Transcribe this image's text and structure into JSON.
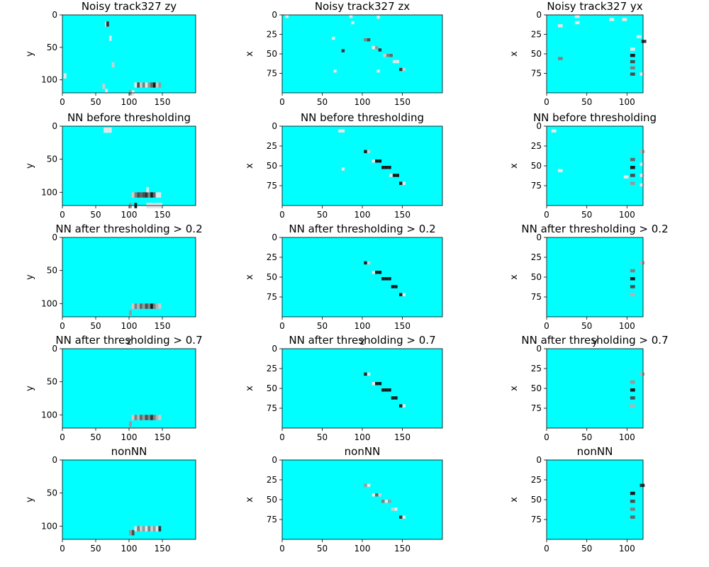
{
  "chart_data": {
    "type": "heatmap",
    "background_color": "#00ffff",
    "colormap": "gray (hits drawn on cyan background)",
    "columns": [
      {
        "view": "zy",
        "xlabel": "z",
        "ylabel": "y",
        "xlim": [
          0,
          200
        ],
        "ylim": [
          120,
          0
        ],
        "xticks": [
          0,
          50,
          100,
          150
        ],
        "yticks": [
          0,
          50,
          100
        ]
      },
      {
        "view": "zx",
        "xlabel": "z",
        "ylabel": "x",
        "xlim": [
          0,
          200
        ],
        "ylim": [
          100,
          0
        ],
        "xticks": [
          0,
          50,
          100,
          150
        ],
        "yticks": [
          0,
          25,
          50,
          75
        ]
      },
      {
        "view": "yx",
        "xlabel": "y",
        "ylabel": "x",
        "xlim": [
          0,
          120
        ],
        "ylim": [
          100,
          0
        ],
        "xticks": [
          0,
          50,
          100
        ],
        "yticks": [
          0,
          25,
          50,
          75
        ]
      }
    ],
    "rows": [
      {
        "titles": [
          "Noisy track327 zy",
          "Noisy track327 zx",
          "Noisy track327 yx"
        ],
        "panels": [
          [
            [
              64,
              14,
              0.9
            ],
            [
              66,
              14,
              0.2
            ],
            [
              70,
              36,
              0.9
            ],
            [
              74,
              77,
              0.8
            ],
            [
              2,
              94,
              0.9
            ],
            [
              60,
              110,
              0.8
            ],
            [
              64,
              118,
              0.9
            ],
            [
              100,
              120,
              0.6
            ],
            [
              104,
              120,
              0.9
            ],
            [
              108,
              108,
              0.9
            ],
            [
              112,
              108,
              0.3
            ],
            [
              116,
              108,
              0.8
            ],
            [
              120,
              108,
              0.5
            ],
            [
              124,
              108,
              0.9
            ],
            [
              128,
              108,
              0.6
            ],
            [
              132,
              108,
              0.4
            ],
            [
              136,
              108,
              0.1
            ],
            [
              140,
              108,
              0.8
            ],
            [
              144,
              108,
              0.6
            ]
          ],
          [
            [
              4,
              2,
              0.9
            ],
            [
              84,
              2,
              0.9
            ],
            [
              86,
              10,
              0.9
            ],
            [
              118,
              3,
              0.9
            ],
            [
              62,
              30,
              0.9
            ],
            [
              102,
              32,
              0.5
            ],
            [
              106,
              32,
              0.3
            ],
            [
              74,
              46,
              0.2
            ],
            [
              112,
              42,
              0.9
            ],
            [
              116,
              42,
              0.6
            ],
            [
              120,
              45,
              0.2
            ],
            [
              126,
              52,
              0.8
            ],
            [
              130,
              52,
              0.5
            ],
            [
              134,
              52,
              0.4
            ],
            [
              138,
              60,
              0.9
            ],
            [
              142,
              60,
              0.9
            ],
            [
              146,
              70,
              0.2
            ],
            [
              150,
              70,
              0.8
            ],
            [
              64,
              72,
              0.9
            ],
            [
              118,
              72,
              0.9
            ]
          ],
          [
            [
              14,
              14,
              0.9
            ],
            [
              35,
              2,
              0.9
            ],
            [
              35,
              10,
              0.9
            ],
            [
              78,
              6,
              0.9
            ],
            [
              94,
              6,
              0.9
            ],
            [
              112,
              28,
              0.9
            ],
            [
              118,
              34,
              0.2
            ],
            [
              104,
              44,
              0.9
            ],
            [
              104,
              52,
              0.1
            ],
            [
              104,
              60,
              0.3
            ],
            [
              104,
              68,
              0.5
            ],
            [
              104,
              76,
              0.3
            ],
            [
              116,
              76,
              0.9
            ],
            [
              14,
              56,
              0.5
            ]
          ]
        ]
      },
      {
        "titles": [
          "NN before thresholding",
          "NN before thresholding",
          "NN before thresholding"
        ],
        "panels": [
          [
            [
              62,
              6,
              0.9
            ],
            [
              66,
              6,
              0.9
            ],
            [
              70,
              6,
              0.9
            ],
            [
              104,
              104,
              0.8
            ],
            [
              108,
              104,
              0.5
            ],
            [
              112,
              104,
              0.3
            ],
            [
              116,
              104,
              0.4
            ],
            [
              120,
              104,
              0.3
            ],
            [
              124,
              104,
              0.2
            ],
            [
              128,
              104,
              0.5
            ],
            [
              132,
              104,
              0.1
            ],
            [
              136,
              104,
              0.4
            ],
            [
              140,
              104,
              0.9
            ],
            [
              144,
              104,
              0.9
            ],
            [
              126,
              120,
              0.9
            ],
            [
              130,
              120,
              0.9
            ],
            [
              134,
              120,
              0.9
            ],
            [
              138,
              120,
              0.9
            ],
            [
              142,
              120,
              0.9
            ],
            [
              146,
              120,
              0.9
            ],
            [
              108,
              120,
              0.1
            ],
            [
              100,
              120,
              0.6
            ],
            [
              126,
              96,
              0.9
            ]
          ],
          [
            [
              70,
              6,
              0.9
            ],
            [
              74,
              6,
              0.9
            ],
            [
              102,
              32,
              0.1
            ],
            [
              106,
              32,
              0.8
            ],
            [
              112,
              44,
              0.9
            ],
            [
              116,
              44,
              0.1
            ],
            [
              120,
              44,
              0.1
            ],
            [
              124,
              52,
              0.1
            ],
            [
              128,
              52,
              0.1
            ],
            [
              132,
              52,
              0.1
            ],
            [
              134,
              62,
              0.9
            ],
            [
              138,
              62,
              0.1
            ],
            [
              142,
              62,
              0.1
            ],
            [
              146,
              72,
              0.1
            ],
            [
              150,
              72,
              0.9
            ],
            [
              74,
              54,
              0.9
            ]
          ],
          [
            [
              6,
              6,
              0.9
            ],
            [
              14,
              56,
              0.9
            ],
            [
              104,
              42,
              0.4
            ],
            [
              104,
              52,
              0.1
            ],
            [
              104,
              62,
              0.3
            ],
            [
              104,
              72,
              0.6
            ],
            [
              96,
              64,
              0.9
            ],
            [
              116,
              32,
              0.7
            ],
            [
              116,
              48,
              0.9
            ],
            [
              116,
              62,
              0.9
            ],
            [
              116,
              74,
              0.9
            ]
          ]
        ]
      },
      {
        "titles": [
          "NN after thresholding > 0.2",
          "NN after thresholding > 0.2",
          "NN after thresholding > 0.2"
        ],
        "panels": [
          [
            [
              104,
              104,
              0.8
            ],
            [
              108,
              104,
              0.5
            ],
            [
              112,
              104,
              0.7
            ],
            [
              116,
              104,
              0.4
            ],
            [
              120,
              104,
              0.6
            ],
            [
              124,
              104,
              0.3
            ],
            [
              128,
              104,
              0.5
            ],
            [
              132,
              104,
              0.1
            ],
            [
              136,
              104,
              0.5
            ],
            [
              140,
              104,
              0.7
            ],
            [
              144,
              104,
              0.8
            ],
            [
              100,
              114,
              0.6
            ]
          ],
          [
            [
              102,
              32,
              0.1
            ],
            [
              106,
              32,
              0.8
            ],
            [
              112,
              44,
              0.9
            ],
            [
              116,
              44,
              0.1
            ],
            [
              120,
              44,
              0.1
            ],
            [
              124,
              52,
              0.1
            ],
            [
              128,
              52,
              0.1
            ],
            [
              132,
              52,
              0.1
            ],
            [
              136,
              62,
              0.1
            ],
            [
              140,
              62,
              0.1
            ],
            [
              146,
              72,
              0.1
            ],
            [
              150,
              72,
              0.9
            ]
          ],
          [
            [
              104,
              42,
              0.5
            ],
            [
              104,
              52,
              0.1
            ],
            [
              104,
              62,
              0.3
            ],
            [
              104,
              72,
              0.7
            ],
            [
              116,
              32,
              0.7
            ]
          ]
        ]
      },
      {
        "titles": [
          "NN after thresholding > 0.7",
          "NN after thresholding > 0.7",
          "NN after thresholding > 0.7"
        ],
        "panels": [
          [
            [
              104,
              104,
              0.8
            ],
            [
              108,
              104,
              0.5
            ],
            [
              112,
              104,
              0.7
            ],
            [
              116,
              104,
              0.4
            ],
            [
              120,
              104,
              0.6
            ],
            [
              124,
              104,
              0.3
            ],
            [
              128,
              104,
              0.5
            ],
            [
              132,
              104,
              0.2
            ],
            [
              136,
              104,
              0.5
            ],
            [
              140,
              104,
              0.7
            ],
            [
              144,
              104,
              0.8
            ],
            [
              100,
              114,
              0.6
            ]
          ],
          [
            [
              102,
              32,
              0.1
            ],
            [
              106,
              32,
              0.9
            ],
            [
              112,
              44,
              0.9
            ],
            [
              116,
              44,
              0.1
            ],
            [
              120,
              44,
              0.1
            ],
            [
              124,
              52,
              0.1
            ],
            [
              128,
              52,
              0.1
            ],
            [
              132,
              52,
              0.1
            ],
            [
              136,
              62,
              0.1
            ],
            [
              140,
              62,
              0.1
            ],
            [
              146,
              72,
              0.1
            ],
            [
              150,
              72,
              0.9
            ]
          ],
          [
            [
              104,
              42,
              0.6
            ],
            [
              104,
              52,
              0.1
            ],
            [
              104,
              62,
              0.3
            ],
            [
              104,
              72,
              0.7
            ],
            [
              116,
              32,
              0.7
            ]
          ]
        ]
      },
      {
        "titles": [
          "nonNN",
          "nonNN",
          "nonNN"
        ],
        "panels": [
          [
            [
              100,
              110,
              0.6
            ],
            [
              104,
              110,
              0.3
            ],
            [
              108,
              104,
              0.9
            ],
            [
              112,
              104,
              0.5
            ],
            [
              116,
              104,
              0.8
            ],
            [
              120,
              104,
              0.6
            ],
            [
              124,
              104,
              0.9
            ],
            [
              128,
              104,
              0.5
            ],
            [
              132,
              104,
              0.8
            ],
            [
              136,
              104,
              0.6
            ],
            [
              140,
              104,
              0.9
            ],
            [
              144,
              104,
              0.2
            ]
          ],
          [
            [
              102,
              32,
              0.6
            ],
            [
              106,
              32,
              0.9
            ],
            [
              112,
              44,
              0.9
            ],
            [
              116,
              44,
              0.4
            ],
            [
              120,
              44,
              0.8
            ],
            [
              124,
              52,
              0.5
            ],
            [
              128,
              52,
              0.9
            ],
            [
              132,
              52,
              0.6
            ],
            [
              136,
              62,
              0.8
            ],
            [
              140,
              62,
              0.9
            ],
            [
              146,
              72,
              0.2
            ],
            [
              150,
              72,
              0.9
            ]
          ],
          [
            [
              104,
              42,
              0.1
            ],
            [
              104,
              52,
              0.3
            ],
            [
              104,
              62,
              0.5
            ],
            [
              104,
              72,
              0.4
            ],
            [
              116,
              32,
              0.2
            ]
          ]
        ]
      }
    ]
  }
}
